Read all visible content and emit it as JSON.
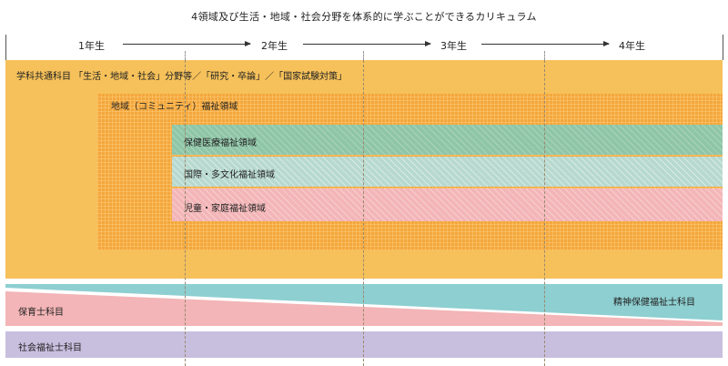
{
  "title": "4領域及び生活・地域・社会分野を体系的に学ぶことができるカリキュラム",
  "years": [
    "1年生",
    "2年生",
    "3年生",
    "4年生"
  ],
  "bands": {
    "common": "学科共通科目 「生活・地域・社会」分野等／「研究・卒論」／「国家試験対策」",
    "community": "地域（コミュニティ）福祉領域",
    "health": "保健医療福祉領域",
    "intl": "国際・多文化福祉領域",
    "child": "児童・家庭福祉領域",
    "childcare": "保育士科目",
    "psych": "精神保健福祉士科目",
    "social": "社会福祉士科目"
  },
  "colors": {
    "common": "#f6c15a",
    "community": "#f4a73c",
    "health": "#8fc6a7",
    "intl": "#b7d9cf",
    "child": "#f3b5b7",
    "childcare": "#f3b5b7",
    "psych": "#8ecfd1",
    "social": "#c8bfdf"
  }
}
